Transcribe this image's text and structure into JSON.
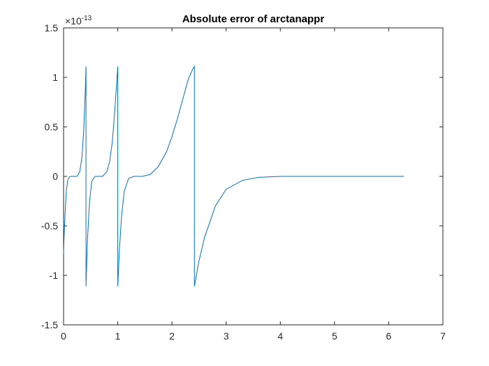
{
  "chart_data": {
    "type": "line",
    "title": "Absolute error of arctanappr",
    "xlabel": "",
    "ylabel": "",
    "xlim": [
      0,
      7
    ],
    "ylim": [
      -1.5,
      1.5
    ],
    "y_exponent_label": {
      "base": "×10",
      "exponent": "-13"
    },
    "x_ticks": [
      "0",
      "1",
      "2",
      "3",
      "4",
      "5",
      "6",
      "7"
    ],
    "y_ticks": [
      "-1.5",
      "-1",
      "-0.5",
      "0",
      "0.5",
      "1",
      "1.5"
    ],
    "x_tick_values": [
      0,
      1,
      2,
      3,
      4,
      5,
      6,
      7
    ],
    "y_tick_values": [
      -1.5,
      -1,
      -0.5,
      0,
      0.5,
      1,
      1.5
    ],
    "grid": false,
    "line_color": "#0072BD",
    "series": [
      {
        "x": [
          0,
          0.01,
          0.03,
          0.05,
          0.08,
          0.12,
          0.18,
          0.25,
          0.3,
          0.34,
          0.37,
          0.4,
          0.414,
          0.414,
          0.44,
          0.48,
          0.52,
          0.58,
          0.65,
          0.72,
          0.8,
          0.85,
          0.9,
          0.95,
          0.98,
          1.0,
          1.0,
          1.03,
          1.07,
          1.12,
          1.2,
          1.3,
          1.45,
          1.6,
          1.75,
          1.9,
          2.0,
          2.1,
          2.2,
          2.3,
          2.38,
          2.414,
          2.414,
          2.5,
          2.6,
          2.8,
          3.0,
          3.3,
          3.6,
          4.0,
          4.5,
          5.0,
          5.5,
          6.0,
          6.28
        ],
        "y": [
          -0.78,
          -0.6,
          -0.35,
          -0.15,
          -0.03,
          0.0,
          0.0,
          0.0,
          0.05,
          0.2,
          0.45,
          0.85,
          1.11,
          -1.11,
          -0.65,
          -0.25,
          -0.05,
          0.0,
          0.0,
          0.0,
          0.05,
          0.15,
          0.35,
          0.7,
          0.95,
          1.11,
          -1.11,
          -0.75,
          -0.4,
          -0.15,
          -0.02,
          0.0,
          0.0,
          0.02,
          0.1,
          0.25,
          0.4,
          0.58,
          0.78,
          0.98,
          1.08,
          1.11,
          -1.11,
          -0.85,
          -0.62,
          -0.3,
          -0.13,
          -0.04,
          -0.01,
          0.0,
          0.0,
          0.0,
          0.0,
          0.0,
          0.0
        ]
      }
    ]
  }
}
